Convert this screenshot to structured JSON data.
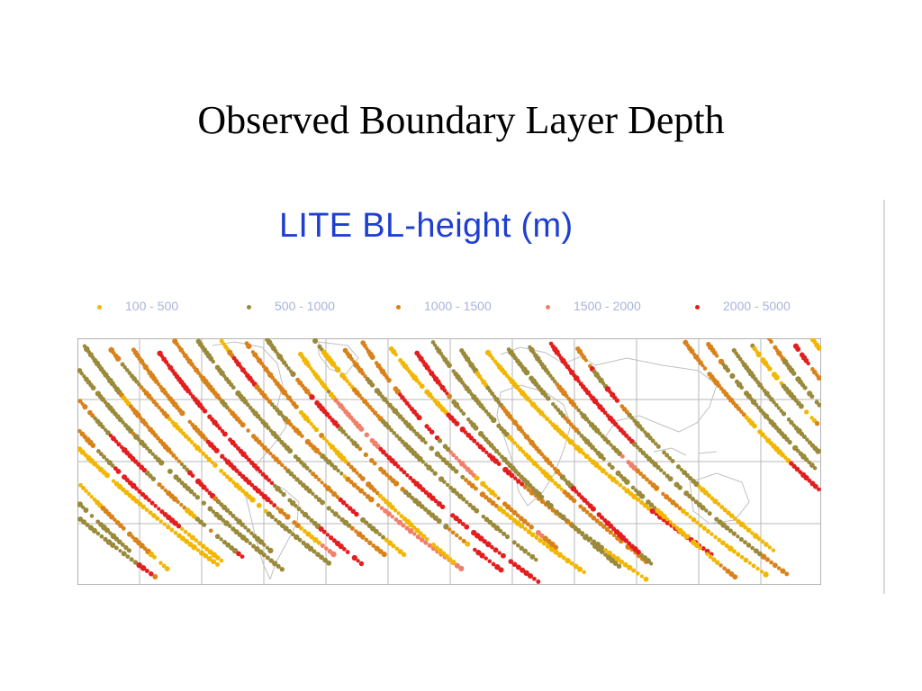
{
  "slide": {
    "title": "Observed Boundary Layer Depth"
  },
  "figure": {
    "title": "LITE BL-height (m)",
    "legend": [
      {
        "label": "100  -  500",
        "color": "#f2b705"
      },
      {
        "label": "500  -  1000",
        "color": "#9a8a3a"
      },
      {
        "label": "1000  -  1500",
        "color": "#d9821a"
      },
      {
        "label": "1500  -  2000",
        "color": "#f0806a"
      },
      {
        "label": "2000  -  5000",
        "color": "#e41e1e"
      }
    ],
    "map": {
      "grid_color": "#b8b8b8",
      "coast_color": "#c0c0c0",
      "gridlines": "on"
    }
  }
}
